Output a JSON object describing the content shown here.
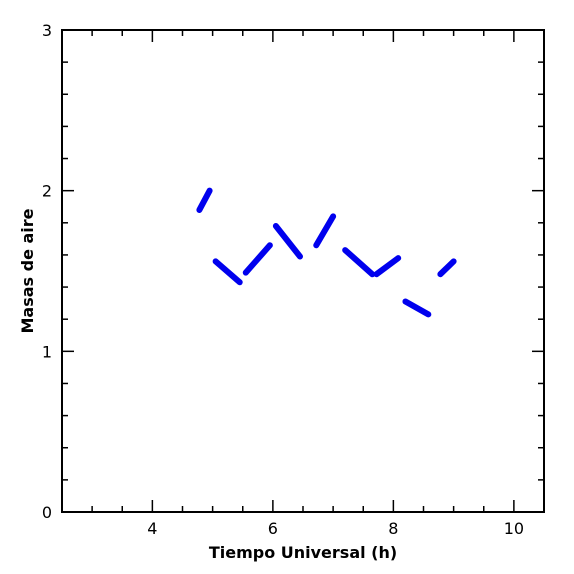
{
  "chart_data": {
    "type": "line",
    "title": "",
    "xlabel": "Tiempo Universal (h)",
    "ylabel": "Masas de aire",
    "xlim": [
      2.5,
      10.5
    ],
    "ylim": [
      0,
      3
    ],
    "x_ticks": [
      4,
      6,
      8,
      10
    ],
    "y_ticks": [
      0,
      1,
      2,
      3
    ],
    "x_tick_labels": [
      "4",
      "6",
      "8",
      "10"
    ],
    "y_tick_labels": [
      "0",
      "1",
      "2",
      "3"
    ],
    "grid": false,
    "legend": null,
    "series_color": "#0000ee",
    "segments": [
      {
        "x": [
          4.78,
          4.95
        ],
        "y": [
          1.88,
          2.0
        ]
      },
      {
        "x": [
          5.05,
          5.45
        ],
        "y": [
          1.56,
          1.43
        ]
      },
      {
        "x": [
          5.55,
          5.95
        ],
        "y": [
          1.49,
          1.66
        ]
      },
      {
        "x": [
          6.05,
          6.45
        ],
        "y": [
          1.78,
          1.59
        ]
      },
      {
        "x": [
          6.72,
          7.0
        ],
        "y": [
          1.66,
          1.84
        ]
      },
      {
        "x": [
          7.2,
          7.65
        ],
        "y": [
          1.63,
          1.48
        ]
      },
      {
        "x": [
          7.72,
          8.08
        ],
        "y": [
          1.48,
          1.58
        ]
      },
      {
        "x": [
          8.2,
          8.58
        ],
        "y": [
          1.31,
          1.23
        ]
      },
      {
        "x": [
          8.78,
          9.0
        ],
        "y": [
          1.48,
          1.56
        ]
      }
    ]
  }
}
